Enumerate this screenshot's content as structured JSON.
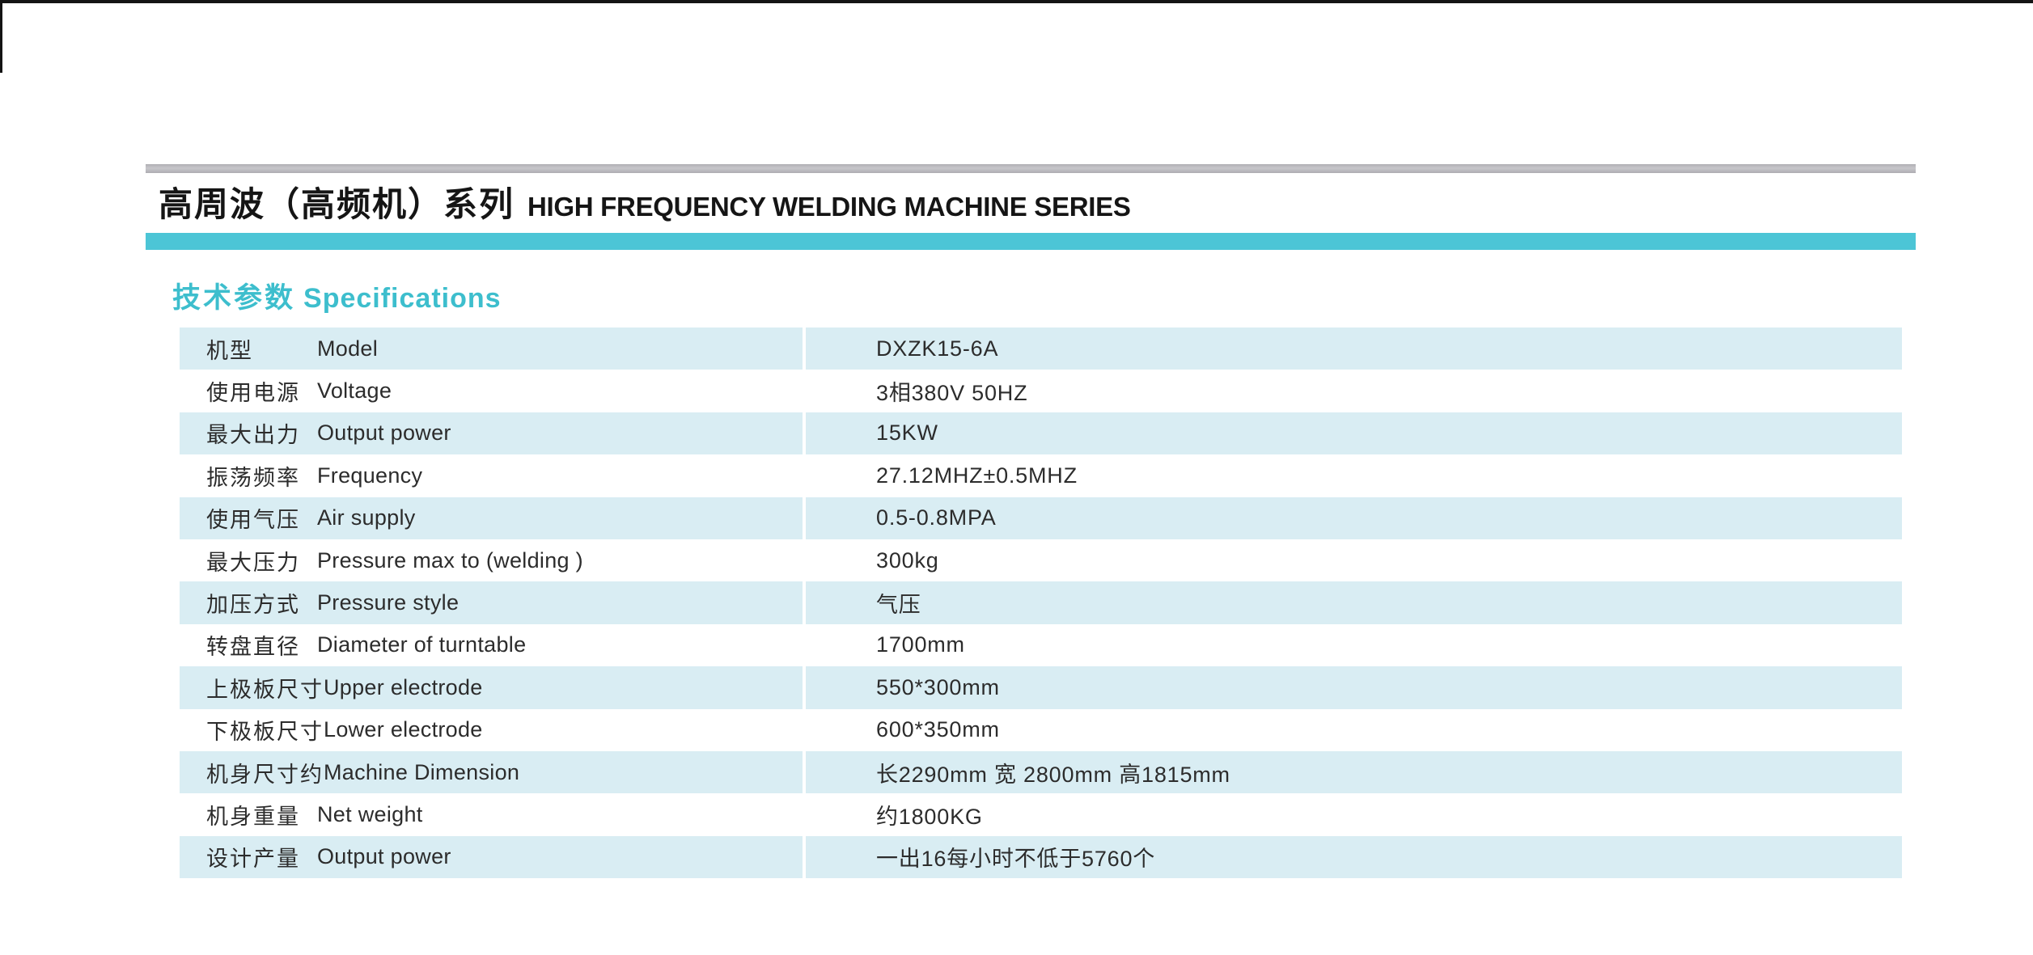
{
  "page": {
    "title_zh": "高周波（高频机）系列",
    "title_en": "HIGH FREQUENCY WELDING MACHINE SERIES"
  },
  "section": {
    "heading_zh": "技术参数",
    "heading_en": "Specifications"
  },
  "colors": {
    "accent_cyan": "#4cc5d6",
    "heading_cyan": "#3dbecd",
    "row_blue": "#d9edf3"
  },
  "table": {
    "rows": [
      {
        "zh": "机型",
        "en": "Model",
        "value": "DXZK15-6A"
      },
      {
        "zh": "使用电源",
        "en": "Voltage",
        "value": "3相380V 50HZ"
      },
      {
        "zh": "最大出力",
        "en": "Output power",
        "value": "15KW"
      },
      {
        "zh": "振荡频率",
        "en": "Frequency",
        "value": "27.12MHZ±0.5MHZ"
      },
      {
        "zh": "使用气压",
        "en": "Air supply",
        "value": "0.5-0.8MPA"
      },
      {
        "zh": "最大压力",
        "en": "Pressure max to (welding )",
        "value": "300kg"
      },
      {
        "zh": "加压方式",
        "en": "Pressure style",
        "value": "气压"
      },
      {
        "zh": "转盘直径",
        "en": "Diameter of turntable",
        "value": "1700mm"
      },
      {
        "zh": "上极板尺寸",
        "en": "Upper electrode",
        "value": "550*300mm"
      },
      {
        "zh": "下极板尺寸",
        "en": "Lower electrode",
        "value": "600*350mm"
      },
      {
        "zh": "机身尺寸约",
        "en": "Machine Dimension",
        "value": "长2290mm 宽 2800mm  高1815mm"
      },
      {
        "zh": "机身重量",
        "en": "Net weight",
        "value": "约1800KG"
      },
      {
        "zh": "设计产量",
        "en": "Output power",
        "value": "一出16每小时不低于5760个"
      }
    ]
  }
}
